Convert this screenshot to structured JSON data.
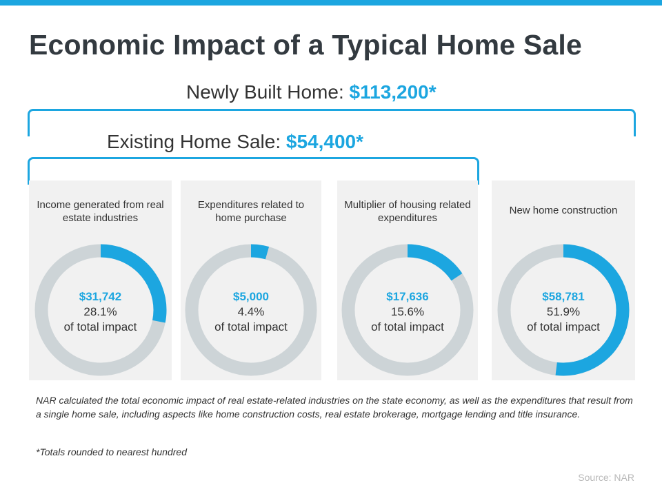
{
  "title": "Economic Impact of a Typical Home Sale",
  "newly_built": {
    "label": "Newly Built Home:",
    "value": "$113,200*"
  },
  "existing": {
    "label": "Existing Home Sale:",
    "value": "$54,400*"
  },
  "colors": {
    "accent": "#1ca6e0",
    "ring": "#cdd4d7",
    "panel": "#f1f1f1"
  },
  "chart_data": {
    "type": "pie",
    "title": "Economic Impact of a Typical Home Sale",
    "categories": [
      "Income generated from real estate industries",
      "Expenditures related to home purchase",
      "Multiplier of housing related expenditures",
      "New home construction"
    ],
    "amounts": [
      "$31,742",
      "$5,000",
      "$17,636",
      "$58,781"
    ],
    "percents": [
      "28.1%",
      "4.4%",
      "15.6%",
      "51.9%"
    ],
    "values": [
      28.1,
      4.4,
      15.6,
      51.9
    ],
    "caption": "of total impact"
  },
  "note": "NAR calculated the total economic impact of real estate-related industries on the state economy, as well as the expenditures that result from a single home sale, including aspects like home construction costs, real estate brokerage, mortgage lending and title insurance.",
  "footnote": "*Totals rounded to nearest hundred",
  "source": "Source: NAR"
}
